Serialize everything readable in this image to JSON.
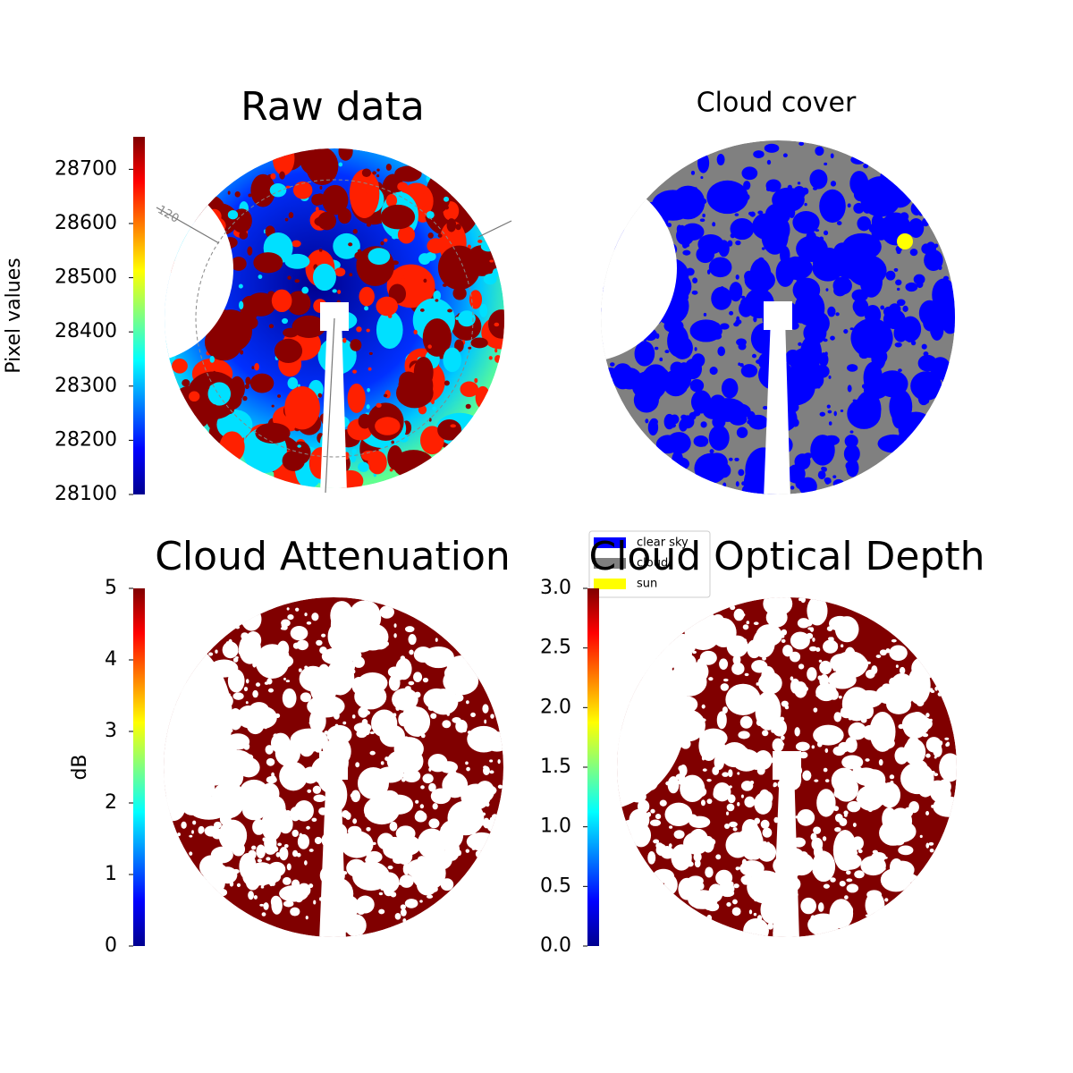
{
  "chart_data": [
    {
      "type": "image",
      "title": "Raw data",
      "colormap": "jet",
      "colorbar": {
        "label": "Pixel values",
        "lim": [
          28100,
          28760
        ],
        "ticks": [
          28100,
          28200,
          28300,
          28400,
          28500,
          28600,
          28700
        ]
      },
      "annotations": [
        "120"
      ]
    },
    {
      "type": "image",
      "title": "Cloud cover",
      "legend": [
        {
          "name": "clear sky",
          "color": "#0000ff"
        },
        {
          "name": "cloud",
          "color": "#808080"
        },
        {
          "name": "sun",
          "color": "#ffff00"
        }
      ]
    },
    {
      "type": "image",
      "title": "Cloud Attenuation",
      "colormap": "jet",
      "colorbar": {
        "label": "dB",
        "lim": [
          0,
          5
        ],
        "ticks": [
          0,
          1,
          2,
          3,
          4,
          5
        ]
      }
    },
    {
      "type": "image",
      "title": "Cloud Optical Depth",
      "colormap": "jet",
      "colorbar": {
        "lim": [
          0,
          3
        ],
        "ticks": [
          {
            "value": 0,
            "label": "0.0"
          },
          {
            "value": 0.5,
            "label": "0.5"
          },
          {
            "value": 1,
            "label": "1.0"
          },
          {
            "value": 1.5,
            "label": "1.5"
          },
          {
            "value": 2,
            "label": "2.0"
          },
          {
            "value": 2.5,
            "label": "2.5"
          },
          {
            "value": 3,
            "label": "3.0"
          }
        ]
      }
    }
  ]
}
